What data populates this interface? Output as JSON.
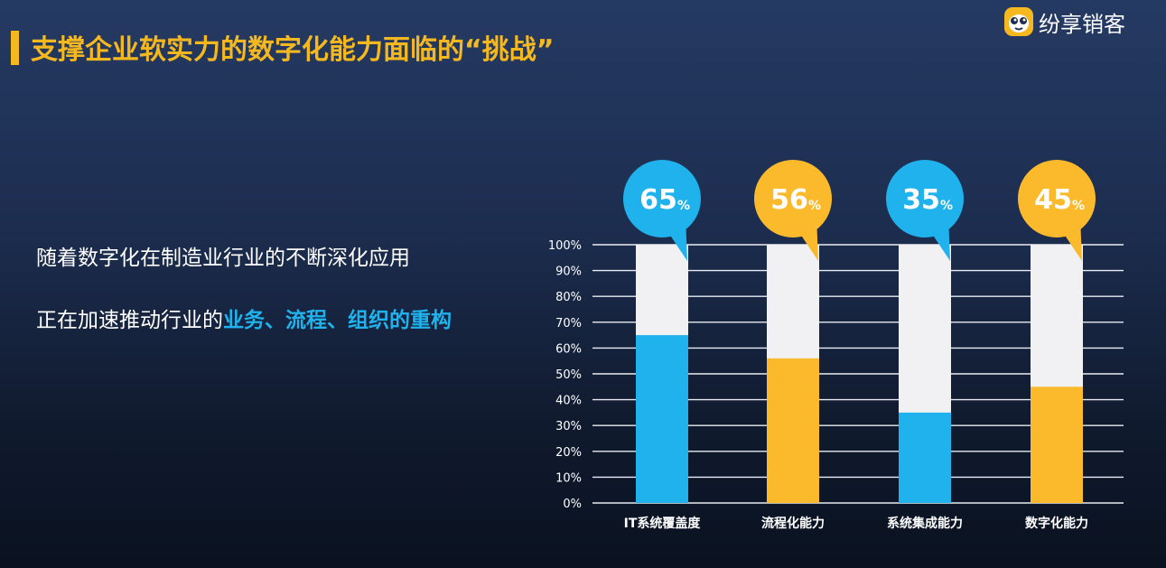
{
  "header": {
    "title": "支撑企业软实力的数字化能力面临的“挑战”",
    "logo_text": "纷享销客",
    "accent_color": "#f6b81f"
  },
  "body": {
    "line1": "随着数字化在制造业行业的不断深化应用",
    "line2_prefix": "正在加速推动行业的",
    "line2_highlight": "业务、流程、组织的重构",
    "highlight_color": "#1fb2ec"
  },
  "chart_data": {
    "type": "bar",
    "categories": [
      "IT系统覆盖度",
      "流程化能力",
      "系统集成能力",
      "数字化能力"
    ],
    "values": [
      65,
      56,
      35,
      45
    ],
    "value_labels": [
      "65",
      "56",
      "35",
      "45"
    ],
    "value_suffix": "%",
    "colors": [
      "#1fb2ec",
      "#fbba2c",
      "#1fb2ec",
      "#fbba2c"
    ],
    "remainder_color": "#f1f1f3",
    "ylim": [
      0,
      100
    ],
    "yticks": [
      "0%",
      "10%",
      "20%",
      "30%",
      "40%",
      "50%",
      "60%",
      "70%",
      "80%",
      "90%",
      "100%"
    ],
    "grid": true,
    "title": "",
    "xlabel": "",
    "ylabel": ""
  }
}
